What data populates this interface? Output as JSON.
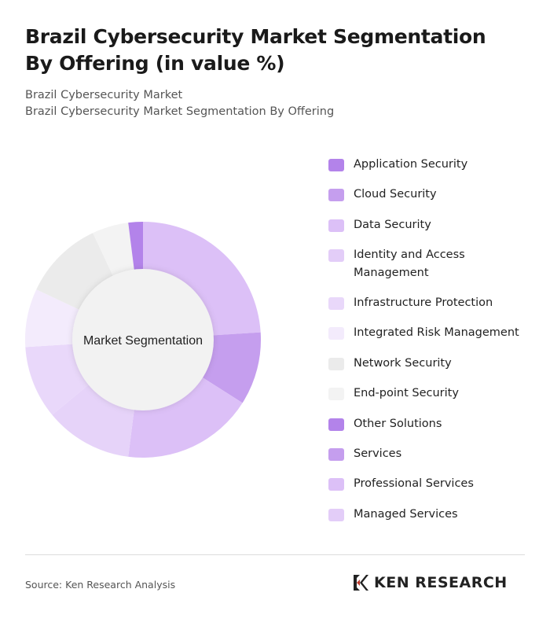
{
  "title": "Brazil Cybersecurity Market Segmentation By Offering (in value %)",
  "subtitle1": "Brazil Cybersecurity Market",
  "subtitle2": "Brazil Cybersecurity Market Segmentation By Offering",
  "source": "Source: Ken Research Analysis",
  "logo_text": "KEN RESEARCH",
  "chart_data": {
    "type": "pie",
    "donut": true,
    "center_label": "Market Segmentation",
    "legend_position": "right",
    "legend": [
      {
        "label": "Application Security",
        "color": "#b383ea"
      },
      {
        "label": "Cloud Security",
        "color": "#c59eee"
      },
      {
        "label": "Data Security",
        "color": "#dcc0f7"
      },
      {
        "label": "Identity and Access Management",
        "color": "#e3cdf8"
      },
      {
        "label": "Infrastructure Protection",
        "color": "#e9d8fa"
      },
      {
        "label": "Integrated Risk Management",
        "color": "#f3ebfc"
      },
      {
        "label": "Network Security",
        "color": "#ebebeb"
      },
      {
        "label": "End-point Security",
        "color": "#f3f3f3"
      },
      {
        "label": "Other Solutions",
        "color": "#b383ea"
      },
      {
        "label": "Services",
        "color": "#c59eee"
      },
      {
        "label": "Professional Services",
        "color": "#dcc0f7"
      },
      {
        "label": "Managed Services",
        "color": "#e3cdf8"
      }
    ],
    "slices": [
      {
        "value": 24,
        "color": "#dcc0f7"
      },
      {
        "value": 10,
        "color": "#c59eee"
      },
      {
        "value": 18,
        "color": "#dcc0f7"
      },
      {
        "value": 12,
        "color": "#e6d3f9"
      },
      {
        "value": 10,
        "color": "#e9d8fa"
      },
      {
        "value": 8,
        "color": "#f3ebfc"
      },
      {
        "value": 11,
        "color": "#ebebeb"
      },
      {
        "value": 5,
        "color": "#f3f3f3"
      },
      {
        "value": 2,
        "color": "#b383ea"
      }
    ]
  }
}
